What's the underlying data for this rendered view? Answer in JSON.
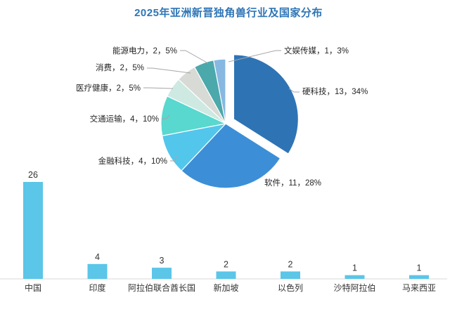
{
  "page": {
    "background": "#FFFFFF"
  },
  "title": {
    "text": "2025年亚洲新晋独角兽行业及国家分布",
    "color": "#2E75B6"
  },
  "chart_data": [
    {
      "type": "pie",
      "name": "industry-distribution-pie",
      "label_separator": "，",
      "label_color": "#262626",
      "leader_line_color": "#A6A6A6",
      "start_angle_deg": 0,
      "direction": "clockwise",
      "slices": [
        {
          "label": "硬科技",
          "value": 13,
          "pct": 34,
          "color": "#2E74B5",
          "exploded": true
        },
        {
          "label": "软件",
          "value": 11,
          "pct": 28,
          "color": "#3C8FD6",
          "exploded": false
        },
        {
          "label": "金融科技",
          "value": 4,
          "pct": 10,
          "color": "#53C6EC",
          "exploded": false
        },
        {
          "label": "交通运输",
          "value": 4,
          "pct": 10,
          "color": "#58D8CE",
          "exploded": false
        },
        {
          "label": "医疗健康",
          "value": 2,
          "pct": 5,
          "color": "#CDE9E2",
          "exploded": false
        },
        {
          "label": "消费",
          "value": 2,
          "pct": 5,
          "color": "#D8DAD5",
          "exploded": false
        },
        {
          "label": "能源电力",
          "value": 2,
          "pct": 5,
          "color": "#4BA8AB",
          "exploded": false
        },
        {
          "label": "文娱传媒",
          "value": 1,
          "pct": 3,
          "color": "#86B8E2",
          "exploded": false
        }
      ]
    },
    {
      "type": "bar",
      "name": "country-distribution-bar",
      "categories": [
        "中国",
        "印度",
        "阿拉伯联合酋长国",
        "新加坡",
        "以色列",
        "沙特阿拉伯",
        "马来西亚"
      ],
      "values": [
        26,
        4,
        3,
        2,
        2,
        1,
        1
      ],
      "ylim": [
        0,
        26
      ],
      "grid": false,
      "bar_color": "#5BC6E8",
      "axis_line_color": "#D9D9D9",
      "value_label_color": "#333333",
      "category_label_color": "#333333"
    }
  ]
}
